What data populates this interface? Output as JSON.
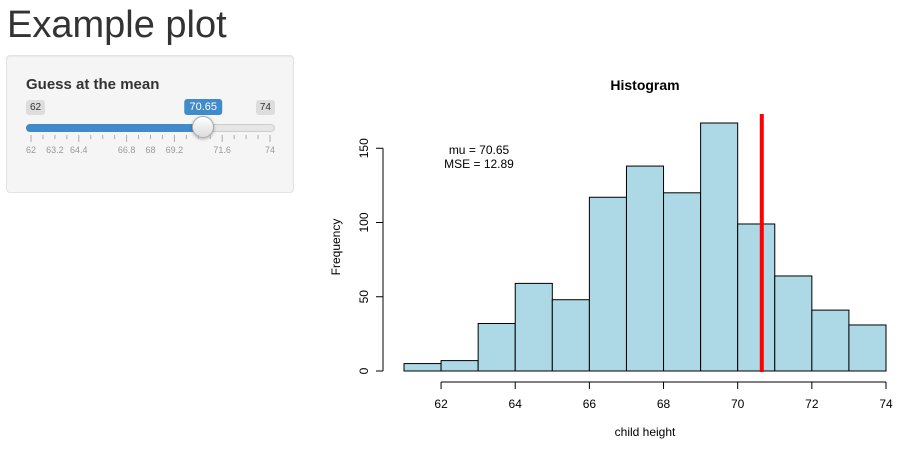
{
  "page": {
    "title": "Example plot"
  },
  "slider": {
    "label": "Guess at the mean",
    "min": 62,
    "max": 74,
    "value": 70.65,
    "min_label": "62",
    "max_label": "74",
    "value_label": "70.65",
    "grid_labels": [
      "62",
      "63.2",
      "64.4",
      "66.8",
      "68",
      "69.2",
      "71.6",
      "74"
    ],
    "grid_values": [
      62,
      63.2,
      64.4,
      66.8,
      68,
      69.2,
      71.6,
      74
    ],
    "accent_color": "#428bca"
  },
  "chart_data": {
    "type": "bar",
    "title": "Histogram",
    "xlabel": "child height",
    "ylabel": "Frequency",
    "bin_edges": [
      61,
      62,
      63,
      64,
      65,
      66,
      67,
      68,
      69,
      70,
      71,
      72,
      73,
      74
    ],
    "values": [
      5,
      7,
      32,
      59,
      48,
      117,
      138,
      120,
      167,
      99,
      64,
      41,
      31
    ],
    "xlim": [
      61,
      74
    ],
    "ylim": [
      0,
      167
    ],
    "x_ticks": [
      62,
      64,
      66,
      68,
      70,
      72,
      74
    ],
    "y_ticks": [
      0,
      50,
      100,
      150
    ],
    "bar_color": "#add8e6",
    "mean_line": {
      "x": 70.65,
      "color": "#ff0000"
    },
    "annotation": {
      "mu_label": "mu =  70.65",
      "mse_label": "MSE =  12.89"
    }
  }
}
